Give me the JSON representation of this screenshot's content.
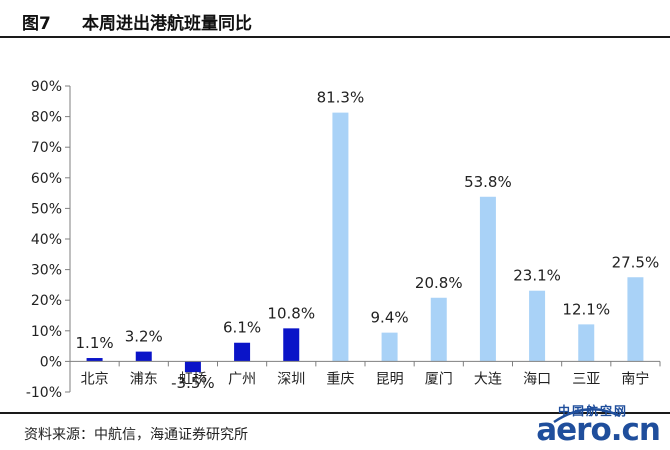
{
  "figure": {
    "number": "图7",
    "title": "本周进出港航班量同比"
  },
  "source": "资料来源：中航信，海通证券研究所",
  "watermark": {
    "cn": "中国航空网",
    "en": "aero.cn"
  },
  "colors": {
    "dark_bar": "#0a14c8",
    "light_bar": "#a9d2f7",
    "axis": "#7f7f7f",
    "text": "#222222"
  },
  "chart_data": {
    "type": "bar",
    "categories": [
      "北京",
      "浦东",
      "虹桥",
      "广州",
      "深圳",
      "重庆",
      "昆明",
      "厦门",
      "大连",
      "海口",
      "三亚",
      "南宁"
    ],
    "values": [
      1.1,
      3.2,
      -3.5,
      6.1,
      10.8,
      81.3,
      9.4,
      20.8,
      53.8,
      23.1,
      12.1,
      27.5
    ],
    "data_labels": [
      "1.1%",
      "3.2%",
      "-3.5%",
      "6.1%",
      "10.8%",
      "81.3%",
      "9.4%",
      "20.8%",
      "53.8%",
      "23.1%",
      "12.1%",
      "27.5%"
    ],
    "bar_style": [
      "dark",
      "dark",
      "dark",
      "dark",
      "dark",
      "light",
      "light",
      "light",
      "light",
      "light",
      "light",
      "light"
    ],
    "yticks": [
      "-10%",
      "0%",
      "10%",
      "20%",
      "30%",
      "40%",
      "50%",
      "60%",
      "70%",
      "80%",
      "90%"
    ],
    "ytick_values": [
      -10,
      0,
      10,
      20,
      30,
      40,
      50,
      60,
      70,
      80,
      90
    ],
    "ylim": [
      -10,
      90
    ],
    "grid": false,
    "legend": "none"
  }
}
